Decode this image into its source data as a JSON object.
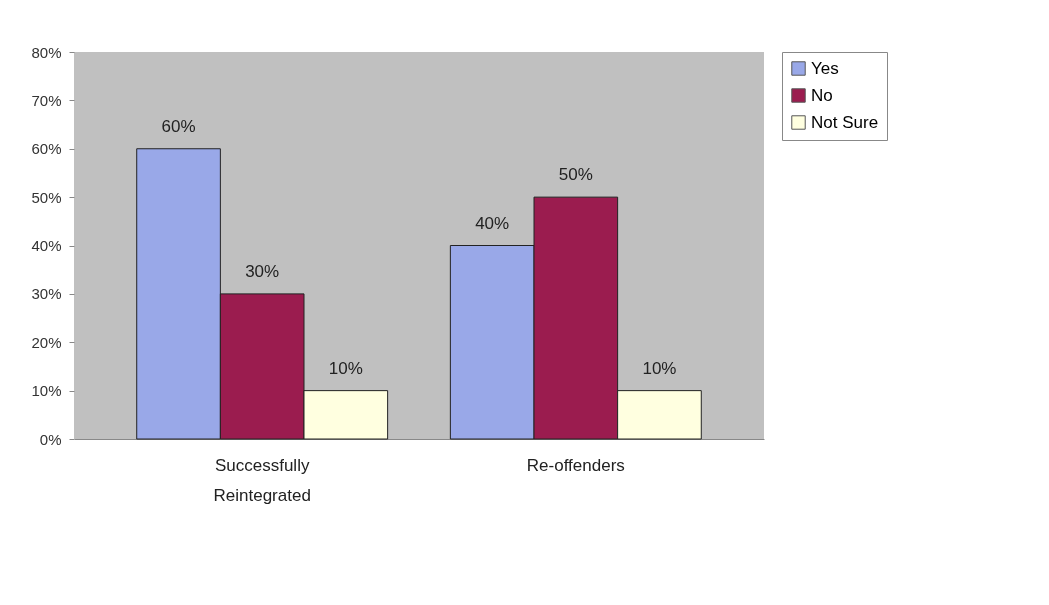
{
  "chart_data": {
    "type": "bar",
    "categories": [
      "Successfully Reintegrated",
      "Re-offenders"
    ],
    "series": [
      {
        "name": "Yes",
        "color": "#99a8e8",
        "values": [
          60,
          40
        ],
        "value_labels": [
          "60%",
          "40%"
        ]
      },
      {
        "name": "No",
        "color": "#9b1c4f",
        "values": [
          30,
          50
        ],
        "value_labels": [
          "30%",
          "50%"
        ]
      },
      {
        "name": "Not Sure",
        "color": "#ffffe0",
        "values": [
          10,
          10
        ],
        "value_labels": [
          "10%",
          "10%"
        ]
      }
    ],
    "ylim": [
      0,
      80
    ],
    "yticks": [
      {
        "value": 0,
        "label": "0%"
      },
      {
        "value": 10,
        "label": "10%"
      },
      {
        "value": 20,
        "label": "20%"
      },
      {
        "value": 30,
        "label": "30%"
      },
      {
        "value": 40,
        "label": "40%"
      },
      {
        "value": 50,
        "label": "50%"
      },
      {
        "value": 60,
        "label": "60%"
      },
      {
        "value": 70,
        "label": "70%"
      },
      {
        "value": 80,
        "label": "80%"
      }
    ],
    "grid": false,
    "legend": "right"
  }
}
